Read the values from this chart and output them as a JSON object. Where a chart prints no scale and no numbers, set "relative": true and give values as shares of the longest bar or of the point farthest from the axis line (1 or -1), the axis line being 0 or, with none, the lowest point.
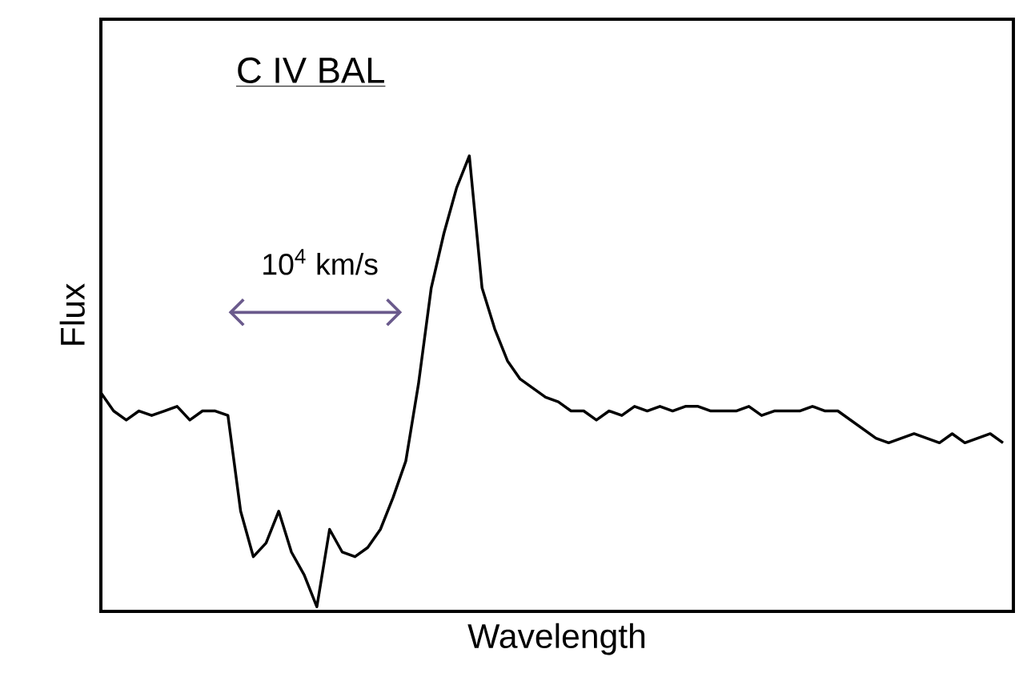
{
  "chart_data": {
    "type": "line",
    "relative": true,
    "tick_labels": false,
    "title": "C IV BAL",
    "xlabel": "Wavelength",
    "ylabel": "Flux",
    "annotations": [
      "10$^{4}$ km/s"
    ],
    "categories": [
      null,
      null,
      null,
      null,
      null,
      null,
      null,
      null,
      null,
      null,
      null,
      null,
      null,
      null,
      null,
      null,
      null,
      null,
      null,
      null,
      null,
      null,
      null,
      null,
      null,
      null,
      null,
      null,
      null,
      null,
      null,
      null,
      null,
      null,
      null,
      null,
      null,
      null,
      null,
      null,
      null,
      null,
      null,
      null,
      null,
      null,
      null,
      null,
      null,
      null,
      null,
      null,
      null,
      null,
      null,
      null,
      null,
      null,
      null,
      null,
      null,
      null,
      null,
      null,
      null,
      null,
      null,
      null,
      null,
      null,
      null,
      null
    ],
    "series": [
      {
        "color": "#000000",
        "values": [
          0.48,
          0.44,
          0.42,
          0.44,
          0.43,
          0.44,
          0.45,
          0.42,
          0.44,
          0.44,
          0.43,
          0.22,
          0.12,
          0.15,
          0.22,
          0.13,
          0.08,
          0.01,
          0.18,
          0.13,
          0.12,
          0.14,
          0.18,
          0.25,
          0.33,
          0.5,
          0.71,
          0.83,
          0.93,
          1.0,
          0.71,
          0.62,
          0.55,
          0.51,
          0.49,
          0.47,
          0.46,
          0.44,
          0.44,
          0.42,
          0.44,
          0.43,
          0.45,
          0.44,
          0.45,
          0.44,
          0.45,
          0.45,
          0.44,
          0.44,
          0.44,
          0.45,
          0.43,
          0.44,
          0.44,
          0.44,
          0.45,
          0.44,
          0.44,
          0.42,
          0.4,
          0.38,
          0.37,
          0.38,
          0.39,
          0.38,
          0.37,
          0.39,
          0.37,
          0.38,
          0.39,
          0.37
        ]
      }
    ]
  }
}
